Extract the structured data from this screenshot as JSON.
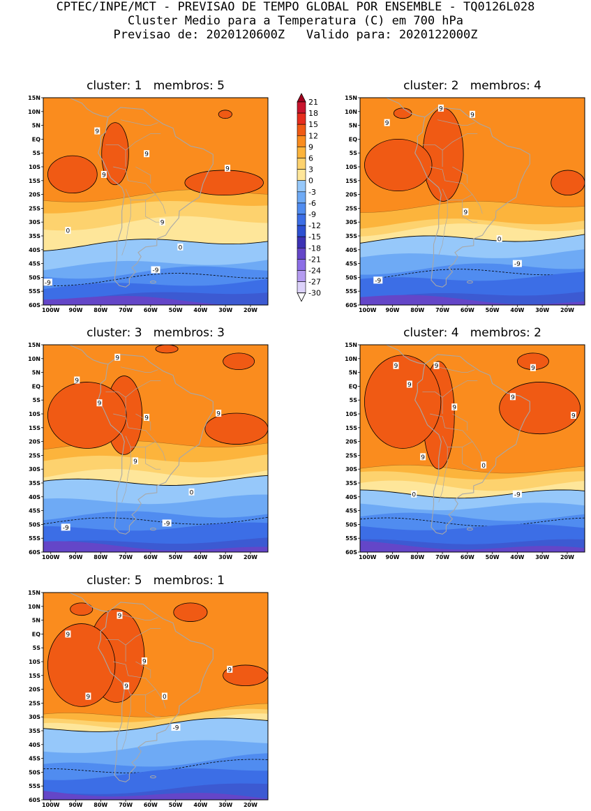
{
  "header": {
    "line1": "CPTEC/INPE/MCT - PREVISAO DE TEMPO GLOBAL POR ENSEMBLE - TQ0126L028",
    "line2": "Cluster Medio para a Temperatura (C) em 700 hPa",
    "line3": "Previsao de: 2020120600Z   Valido para: 2020122000Z"
  },
  "axes": {
    "lat_labels": [
      "15N",
      "10N",
      "5N",
      "EQ",
      "5S",
      "10S",
      "15S",
      "20S",
      "25S",
      "30S",
      "35S",
      "40S",
      "45S",
      "50S",
      "55S",
      "60S"
    ],
    "lon_labels": [
      "100W",
      "90W",
      "80W",
      "70W",
      "60W",
      "50W",
      "40W",
      "30W",
      "20W"
    ]
  },
  "colorbar": {
    "labels": [
      "21",
      "18",
      "15",
      "12",
      "9",
      "6",
      "3",
      "0",
      "-3",
      "-6",
      "-9",
      "-12",
      "-15",
      "-18",
      "-21",
      "-24",
      "-27",
      "-30"
    ],
    "colors": [
      "#a0001e",
      "#c8142d",
      "#e62d1e",
      "#f05a14",
      "#fa8c1e",
      "#fcb43c",
      "#fdd26e",
      "#fee69a",
      "#96c8fa",
      "#6eaaf5",
      "#508cf0",
      "#3c6ee6",
      "#2d50d2",
      "#3c32b4",
      "#6446c8",
      "#8c6ee6",
      "#b49bf0",
      "#dcd2fa"
    ]
  },
  "clusters": [
    {
      "title": "cluster: 1   membros: 5",
      "contour_labels": [
        "9",
        "9",
        "9",
        "9",
        "9",
        "0",
        "0",
        "-9",
        "-9"
      ]
    },
    {
      "title": "cluster: 2   membros: 4",
      "contour_labels": [
        "9",
        "9",
        "9",
        "9",
        "0",
        "-9",
        "-9"
      ]
    },
    {
      "title": "cluster: 3   membros: 3",
      "contour_labels": [
        "9",
        "9",
        "9",
        "9",
        "9",
        "9",
        "0",
        "-9",
        "-9"
      ]
    },
    {
      "title": "cluster: 4   membros: 2",
      "contour_labels": [
        "9",
        "9",
        "9",
        "9",
        "9",
        "9",
        "9",
        "9",
        "0",
        "0",
        "-9"
      ]
    },
    {
      "title": "cluster: 5   membros: 1",
      "contour_labels": [
        "9",
        "9",
        "9",
        "9",
        "9",
        "9",
        "0",
        "-9"
      ]
    }
  ]
}
